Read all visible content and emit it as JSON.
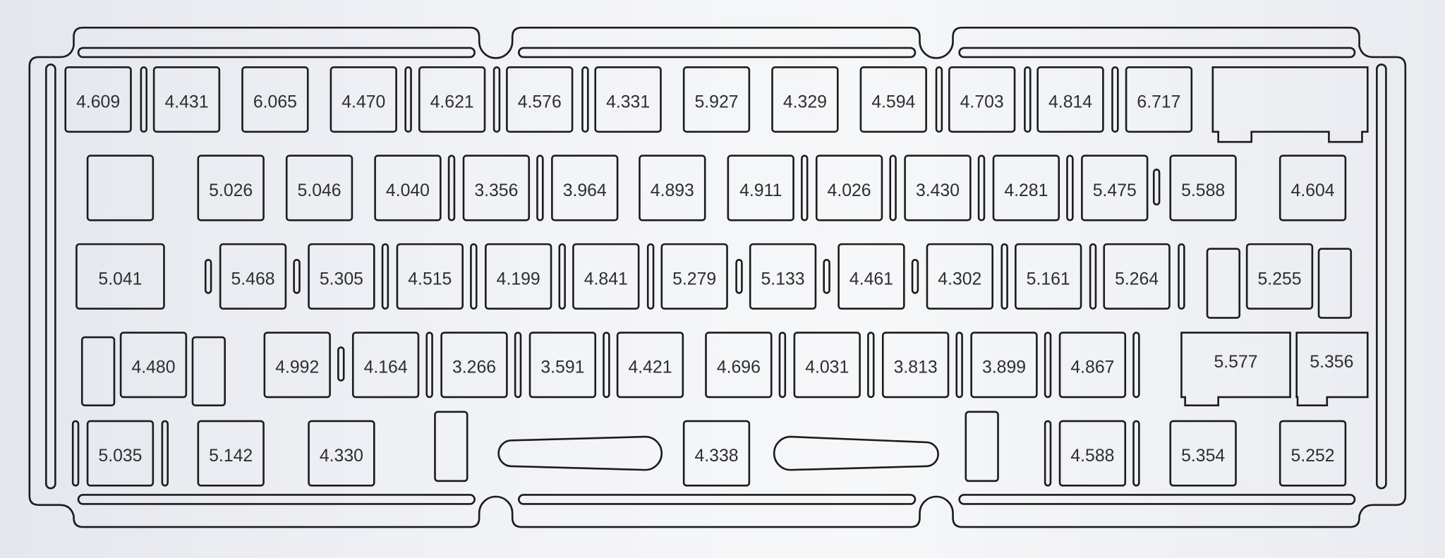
{
  "plate": {
    "rows": [
      {
        "keys": [
          "4.609",
          "4.431",
          "6.065",
          "4.470",
          "4.621",
          "4.576",
          "4.331",
          "5.927",
          "4.329",
          "4.594",
          "4.703",
          "4.814",
          "6.717"
        ]
      },
      {
        "keys": [
          "5.026",
          "5.046",
          "4.040",
          "3.356",
          "3.964",
          "4.893",
          "4.911",
          "4.026",
          "3.430",
          "4.281",
          "5.475",
          "5.588",
          "4.604"
        ]
      },
      {
        "keys": [
          "5.041",
          "5.468",
          "5.305",
          "4.515",
          "4.199",
          "4.841",
          "5.279",
          "5.133",
          "4.461",
          "4.302",
          "5.161",
          "5.264",
          "5.255"
        ]
      },
      {
        "keys": [
          "4.480",
          "4.992",
          "4.164",
          "3.266",
          "3.591",
          "4.421",
          "4.696",
          "4.031",
          "3.813",
          "3.899",
          "4.867",
          "5.577",
          "5.356"
        ]
      },
      {
        "keys": [
          "5.035",
          "5.142",
          "4.330",
          "4.338",
          "4.588",
          "5.354",
          "5.252"
        ]
      }
    ],
    "colors": {
      "outline": "#1c1c1c",
      "label": "#2e2e2e",
      "background": "#eceef2"
    }
  }
}
